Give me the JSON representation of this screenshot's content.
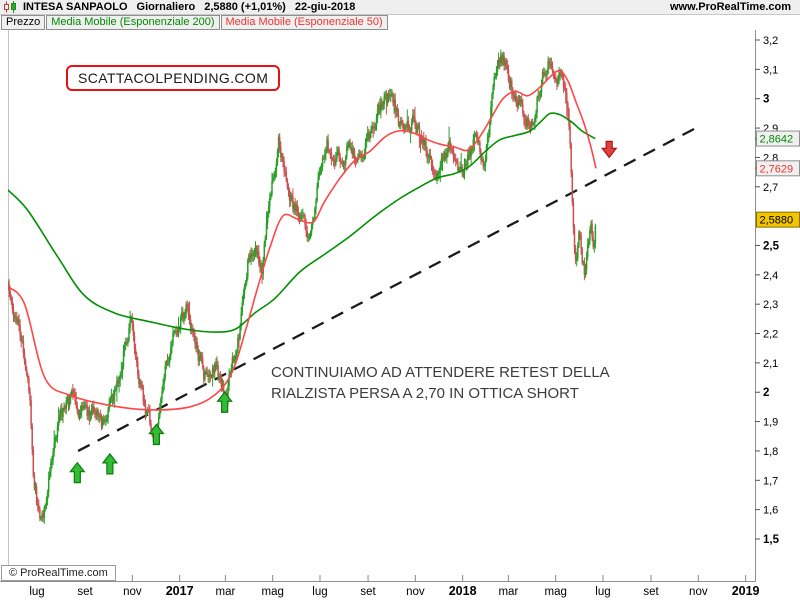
{
  "header": {
    "symbol": "INTESA SANPAOLO",
    "timeframe": "Giornaliero",
    "last_price_and_change": "2,5880 (+1,01%)",
    "session_date": "22-giu-2018",
    "site": "www.ProRealTime.com"
  },
  "legend": {
    "price_label": "Prezzo",
    "ma200_label": "Media Mobile (Esponenziale 200)",
    "ma50_label": "Media Mobile (Esponenziale 50)"
  },
  "watermark": "SCATTACOLPENDING.COM",
  "annotation": {
    "line1": "CONTINUIAMO AD ATTENDERE RETEST DELLA",
    "line2": "RIALZISTA PERSA A 2,70 IN OTTICA SHORT"
  },
  "footer": {
    "copyright": "© ProRealTime.com"
  },
  "chart_data": {
    "type": "candlestick",
    "instrument": "INTESA SANPAOLO",
    "period": "daily",
    "date_range_shown": [
      "2016-05-24",
      "2019-01-01"
    ],
    "last_close": 2.588,
    "colors": {
      "up": "#28a028",
      "down": "#cc5050",
      "ema200": "#009100",
      "ema50": "#ff4545",
      "trendline": "#1a1a1a",
      "buy_arrow": "#33bb33",
      "buy_arrow_border": "#0d7a0d",
      "sell_arrow": "#e04040",
      "sell_arrow_border": "#a81616",
      "badge_last_bg": "#f2c500"
    },
    "y_axis": {
      "min": 1.42,
      "max": 3.23,
      "ticks": [
        {
          "label": "3,2",
          "value": 3.2,
          "bold": false
        },
        {
          "label": "3,1",
          "value": 3.1,
          "bold": false
        },
        {
          "label": "3",
          "value": 3.0,
          "bold": true
        },
        {
          "label": "2,9",
          "value": 2.9,
          "bold": false
        },
        {
          "label": "2,8",
          "value": 2.8,
          "bold": false
        },
        {
          "label": "2,7",
          "value": 2.7,
          "bold": false
        },
        {
          "label": "2,5",
          "value": 2.5,
          "bold": true
        },
        {
          "label": "2,4",
          "value": 2.4,
          "bold": false
        },
        {
          "label": "2,3",
          "value": 2.3,
          "bold": false
        },
        {
          "label": "2,2",
          "value": 2.2,
          "bold": false
        },
        {
          "label": "2,1",
          "value": 2.1,
          "bold": false
        },
        {
          "label": "2",
          "value": 2.0,
          "bold": true
        },
        {
          "label": "1,9",
          "value": 1.9,
          "bold": false
        },
        {
          "label": "1,8",
          "value": 1.8,
          "bold": false
        },
        {
          "label": "1,7",
          "value": 1.7,
          "bold": false
        },
        {
          "label": "1,6",
          "value": 1.6,
          "bold": false
        },
        {
          "label": "1,5",
          "value": 1.5,
          "bold": true
        }
      ]
    },
    "x_axis": {
      "ticks": [
        {
          "label": "lug",
          "date": "2016-07-01",
          "bold": false
        },
        {
          "label": "set",
          "date": "2016-09-01",
          "bold": false
        },
        {
          "label": "nov",
          "date": "2016-11-01",
          "bold": false
        },
        {
          "label": "2017",
          "date": "2017-01-01",
          "bold": true
        },
        {
          "label": "mar",
          "date": "2017-03-01",
          "bold": false
        },
        {
          "label": "mag",
          "date": "2017-05-01",
          "bold": false
        },
        {
          "label": "lug",
          "date": "2017-07-01",
          "bold": false
        },
        {
          "label": "set",
          "date": "2017-09-01",
          "bold": false
        },
        {
          "label": "nov",
          "date": "2017-11-01",
          "bold": false
        },
        {
          "label": "2018",
          "date": "2018-01-01",
          "bold": true
        },
        {
          "label": "mar",
          "date": "2018-03-01",
          "bold": false
        },
        {
          "label": "mag",
          "date": "2018-05-01",
          "bold": false
        },
        {
          "label": "lug",
          "date": "2018-07-01",
          "bold": false
        },
        {
          "label": "set",
          "date": "2018-09-01",
          "bold": false
        },
        {
          "label": "nov",
          "date": "2018-11-01",
          "bold": false
        },
        {
          "label": "2019",
          "date": "2019-01-01",
          "bold": true
        }
      ]
    },
    "price_markers": [
      {
        "id": "ema200",
        "text": "2,8642",
        "value": 2.8642,
        "text_color": "#008a00",
        "bg": "#f0f0f0",
        "border": "#8f8f8f",
        "tick": "#008a00"
      },
      {
        "id": "ema50",
        "text": "2,7629",
        "value": 2.7629,
        "text_color": "#ee3333",
        "bg": "#f0f0f0",
        "border": "#8f8f8f",
        "tick": "#ee3333"
      },
      {
        "id": "last",
        "text": "2,5880",
        "value": 2.588,
        "text_color": "#000000",
        "bg": "#f2c500",
        "border": "#8a7000",
        "tick": "#c09000"
      }
    ],
    "close_path": [
      [
        "2016-05-24",
        2.36
      ],
      [
        "2016-06-02",
        2.28
      ],
      [
        "2016-06-09",
        2.19
      ],
      [
        "2016-06-17",
        2.08
      ],
      [
        "2016-06-22",
        1.97
      ],
      [
        "2016-06-26",
        1.73
      ],
      [
        "2016-07-01",
        1.63
      ],
      [
        "2016-07-06",
        1.56
      ],
      [
        "2016-07-12",
        1.61
      ],
      [
        "2016-07-20",
        1.76
      ],
      [
        "2016-07-28",
        1.87
      ],
      [
        "2016-08-06",
        1.96
      ],
      [
        "2016-08-15",
        1.97
      ],
      [
        "2016-08-23",
        1.92
      ],
      [
        "2016-08-30",
        1.96
      ],
      [
        "2016-09-07",
        1.91
      ],
      [
        "2016-09-16",
        1.94
      ],
      [
        "2016-09-24",
        1.88
      ],
      [
        "2016-10-02",
        1.94
      ],
      [
        "2016-10-13",
        2.04
      ],
      [
        "2016-10-25",
        2.19
      ],
      [
        "2016-10-30",
        2.23
      ],
      [
        "2016-11-07",
        2.07
      ],
      [
        "2016-11-15",
        1.97
      ],
      [
        "2016-11-24",
        1.9
      ],
      [
        "2016-11-30",
        1.86
      ],
      [
        "2016-12-08",
        1.98
      ],
      [
        "2016-12-15",
        2.12
      ],
      [
        "2016-12-25",
        2.19
      ],
      [
        "2017-01-03",
        2.26
      ],
      [
        "2017-01-09",
        2.29
      ],
      [
        "2017-01-17",
        2.21
      ],
      [
        "2017-01-25",
        2.13
      ],
      [
        "2017-02-01",
        2.06
      ],
      [
        "2017-02-09",
        2.03
      ],
      [
        "2017-02-17",
        2.09
      ],
      [
        "2017-02-23",
        2.03
      ],
      [
        "2017-03-03",
        1.99
      ],
      [
        "2017-03-11",
        2.1
      ],
      [
        "2017-03-21",
        2.24
      ],
      [
        "2017-03-31",
        2.46
      ],
      [
        "2017-04-09",
        2.52
      ],
      [
        "2017-04-17",
        2.41
      ],
      [
        "2017-04-26",
        2.62
      ],
      [
        "2017-05-03",
        2.74
      ],
      [
        "2017-05-09",
        2.86
      ],
      [
        "2017-05-18",
        2.72
      ],
      [
        "2017-05-27",
        2.64
      ],
      [
        "2017-06-07",
        2.6
      ],
      [
        "2017-06-18",
        2.51
      ],
      [
        "2017-07-01",
        2.76
      ],
      [
        "2017-07-10",
        2.85
      ],
      [
        "2017-07-21",
        2.78
      ],
      [
        "2017-07-31",
        2.81
      ],
      [
        "2017-08-10",
        2.83
      ],
      [
        "2017-08-18",
        2.79
      ],
      [
        "2017-08-26",
        2.83
      ],
      [
        "2017-09-02",
        2.87
      ],
      [
        "2017-09-11",
        2.94
      ],
      [
        "2017-09-22",
        2.99
      ],
      [
        "2017-10-01",
        3.01
      ],
      [
        "2017-10-10",
        2.93
      ],
      [
        "2017-10-20",
        2.9
      ],
      [
        "2017-10-29",
        2.93
      ],
      [
        "2017-11-08",
        2.87
      ],
      [
        "2017-11-19",
        2.8
      ],
      [
        "2017-11-28",
        2.76
      ],
      [
        "2017-12-07",
        2.82
      ],
      [
        "2017-12-16",
        2.84
      ],
      [
        "2017-12-25",
        2.79
      ],
      [
        "2018-01-01",
        2.75
      ],
      [
        "2018-01-10",
        2.81
      ],
      [
        "2018-01-18",
        2.85
      ],
      [
        "2018-01-27",
        2.77
      ],
      [
        "2018-02-04",
        2.88
      ],
      [
        "2018-02-12",
        3.08
      ],
      [
        "2018-02-19",
        3.15
      ],
      [
        "2018-02-27",
        3.1
      ],
      [
        "2018-03-07",
        3.02
      ],
      [
        "2018-03-15",
        2.98
      ],
      [
        "2018-03-23",
        2.94
      ],
      [
        "2018-03-30",
        2.9
      ],
      [
        "2018-04-07",
        2.99
      ],
      [
        "2018-04-15",
        3.08
      ],
      [
        "2018-04-22",
        3.14
      ],
      [
        "2018-04-30",
        3.1
      ],
      [
        "2018-05-08",
        3.07
      ],
      [
        "2018-05-14",
        3.03
      ],
      [
        "2018-05-19",
        2.88
      ],
      [
        "2018-05-23",
        2.62
      ],
      [
        "2018-05-27",
        2.44
      ],
      [
        "2018-05-31",
        2.52
      ],
      [
        "2018-06-04",
        2.46
      ],
      [
        "2018-06-08",
        2.41
      ],
      [
        "2018-06-11",
        2.52
      ],
      [
        "2018-06-15",
        2.57
      ],
      [
        "2018-06-19",
        2.51
      ],
      [
        "2018-06-22",
        2.588
      ]
    ],
    "ema50": [
      [
        "2016-05-24",
        2.36
      ],
      [
        "2016-06-15",
        2.3
      ],
      [
        "2016-07-11",
        2.05
      ],
      [
        "2016-08-12",
        1.99
      ],
      [
        "2016-10-03",
        1.955
      ],
      [
        "2016-11-24",
        1.94
      ],
      [
        "2017-01-14",
        1.95
      ],
      [
        "2017-02-15",
        1.99
      ],
      [
        "2017-03-10",
        2.07
      ],
      [
        "2017-03-28",
        2.22
      ],
      [
        "2017-04-12",
        2.36
      ],
      [
        "2017-04-27",
        2.49
      ],
      [
        "2017-05-14",
        2.6
      ],
      [
        "2017-06-02",
        2.59
      ],
      [
        "2017-06-22",
        2.58
      ],
      [
        "2017-07-07",
        2.65
      ],
      [
        "2017-07-27",
        2.73
      ],
      [
        "2017-08-15",
        2.79
      ],
      [
        "2017-09-03",
        2.82
      ],
      [
        "2017-09-23",
        2.87
      ],
      [
        "2017-10-10",
        2.89
      ],
      [
        "2017-10-28",
        2.885
      ],
      [
        "2017-11-17",
        2.86
      ],
      [
        "2017-12-03",
        2.845
      ],
      [
        "2017-12-22",
        2.835
      ],
      [
        "2018-01-08",
        2.825
      ],
      [
        "2018-01-23",
        2.87
      ],
      [
        "2018-02-08",
        2.94
      ],
      [
        "2018-02-22",
        3.0
      ],
      [
        "2018-03-10",
        3.025
      ],
      [
        "2018-03-26",
        3.01
      ],
      [
        "2018-04-11",
        3.04
      ],
      [
        "2018-04-26",
        3.08
      ],
      [
        "2018-05-07",
        3.095
      ],
      [
        "2018-05-17",
        3.06
      ],
      [
        "2018-05-27",
        2.99
      ],
      [
        "2018-06-06",
        2.92
      ],
      [
        "2018-06-15",
        2.84
      ],
      [
        "2018-06-22",
        2.7629
      ]
    ],
    "ema200": [
      [
        "2016-05-24",
        2.69
      ],
      [
        "2016-06-19",
        2.62
      ],
      [
        "2016-07-28",
        2.46
      ],
      [
        "2016-08-31",
        2.33
      ],
      [
        "2016-10-09",
        2.27
      ],
      [
        "2016-11-24",
        2.24
      ],
      [
        "2017-01-08",
        2.215
      ],
      [
        "2017-02-15",
        2.205
      ],
      [
        "2017-03-14",
        2.215
      ],
      [
        "2017-04-08",
        2.27
      ],
      [
        "2017-05-04",
        2.32
      ],
      [
        "2017-06-05",
        2.41
      ],
      [
        "2017-07-07",
        2.47
      ],
      [
        "2017-08-08",
        2.53
      ],
      [
        "2017-09-10",
        2.6
      ],
      [
        "2017-10-12",
        2.66
      ],
      [
        "2017-11-07",
        2.7
      ],
      [
        "2017-11-29",
        2.73
      ],
      [
        "2017-12-22",
        2.745
      ],
      [
        "2018-01-10",
        2.77
      ],
      [
        "2018-01-30",
        2.82
      ],
      [
        "2018-02-18",
        2.86
      ],
      [
        "2018-03-10",
        2.875
      ],
      [
        "2018-03-29",
        2.89
      ],
      [
        "2018-04-13",
        2.925
      ],
      [
        "2018-04-24",
        2.95
      ],
      [
        "2018-05-07",
        2.945
      ],
      [
        "2018-05-22",
        2.92
      ],
      [
        "2018-06-04",
        2.89
      ],
      [
        "2018-06-21",
        2.8642
      ]
    ],
    "trendline": {
      "style": "dashed",
      "from": [
        "2016-08-23",
        1.8
      ],
      "to": [
        "2018-11-05",
        2.91
      ]
    },
    "buy_arrows": [
      [
        "2016-08-22",
        1.76
      ],
      [
        "2016-10-03",
        1.79
      ],
      [
        "2016-12-02",
        1.89
      ],
      [
        "2017-02-28",
        2.0
      ]
    ],
    "sell_arrow": [
      "2018-07-09",
      2.8
    ]
  }
}
